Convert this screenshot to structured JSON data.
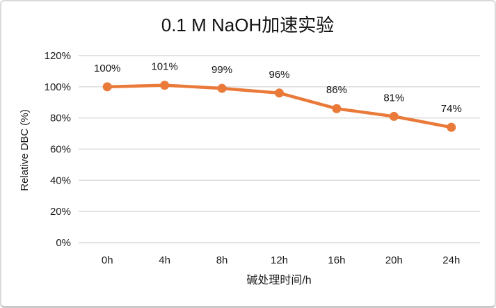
{
  "frame": {
    "background": "#ffffff",
    "border_color": "#dadada"
  },
  "chart_data": {
    "type": "line",
    "title": "0.1 M NaOH加速实验",
    "xlabel": "碱处理时间/h",
    "ylabel": "Relative DBC (%)",
    "categories": [
      "0h",
      "4h",
      "8h",
      "12h",
      "16h",
      "20h",
      "24h"
    ],
    "values": [
      100,
      101,
      99,
      96,
      86,
      81,
      74
    ],
    "data_labels": [
      "100%",
      "101%",
      "99%",
      "96%",
      "86%",
      "81%",
      "74%"
    ],
    "ylim": [
      0,
      120
    ],
    "y_tick_labels": [
      "0%",
      "20%",
      "40%",
      "60%",
      "80%",
      "100%",
      "120%"
    ],
    "grid": true,
    "legend": false,
    "line_color": "#E97A39",
    "marker_color": "#E97A39",
    "gridline_color": "#D9D9D9",
    "text_color": "#1a1a1a"
  }
}
